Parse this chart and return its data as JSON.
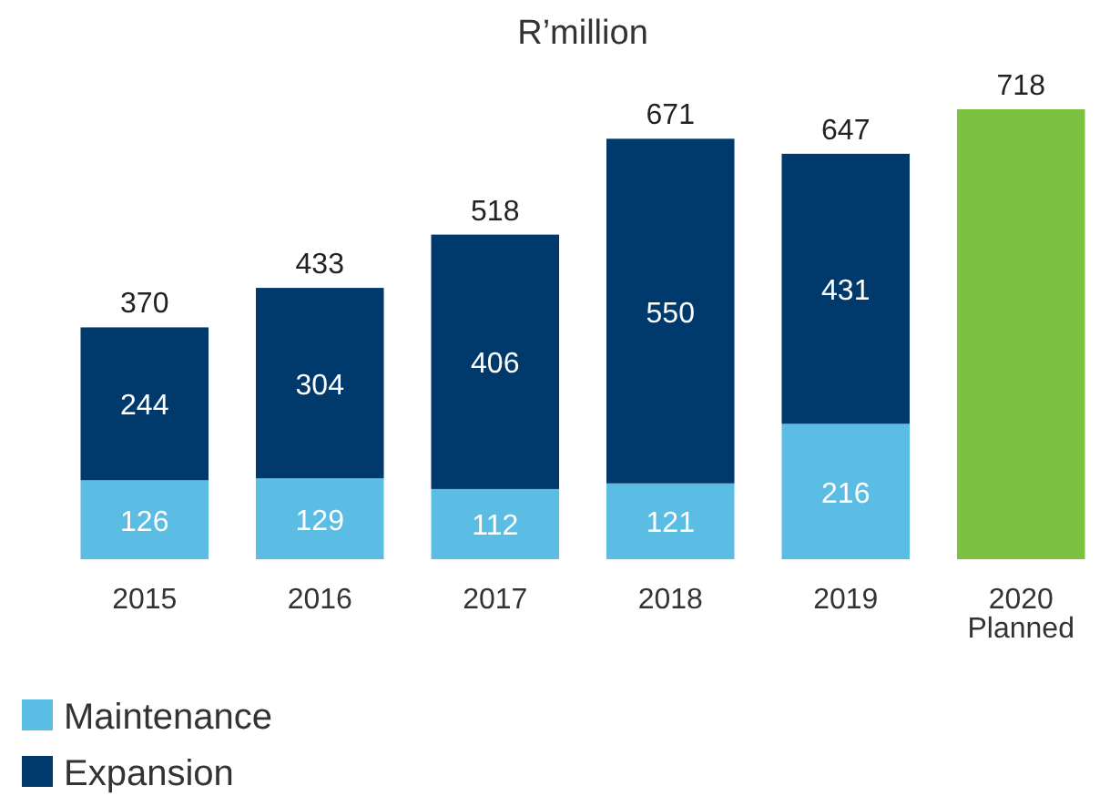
{
  "chart_data": {
    "type": "bar",
    "title": "R’million",
    "stacked": true,
    "legend": "bottom left",
    "categories": [
      "2015",
      "2016",
      "2017",
      "2018",
      "2019",
      "2020\nPlanned"
    ],
    "series": [
      {
        "name": "Maintenance",
        "color": "#5bbde4",
        "values": [
          126,
          129,
          112,
          121,
          216,
          null
        ],
        "value_labels": [
          "126",
          "129",
          "112",
          "121",
          "216",
          null
        ]
      },
      {
        "name": "Expansion",
        "color": "#003a6c",
        "values": [
          244,
          304,
          406,
          550,
          431,
          null
        ],
        "value_labels": [
          "244",
          "304",
          "406",
          "550",
          "431",
          null
        ]
      },
      {
        "color": "#7dc142",
        "values": [
          null,
          null,
          null,
          null,
          null,
          718
        ]
      }
    ],
    "totals": [
      "370",
      "433",
      "518",
      "671",
      "647",
      "718"
    ]
  }
}
